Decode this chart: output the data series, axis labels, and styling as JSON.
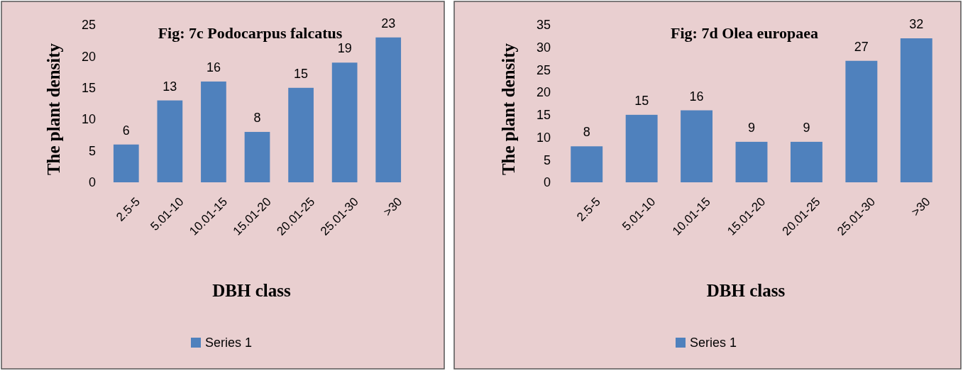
{
  "chart_data": [
    {
      "type": "bar",
      "title": "Fig: 7c Podocarpus falcatus",
      "xlabel": "DBH class",
      "ylabel": "The plant density",
      "categories": [
        "2.5-5",
        "5.01-10",
        "10.01-15",
        "15.01-20",
        "20.01-25",
        "25.01-30",
        ">30"
      ],
      "series": [
        {
          "name": "Series 1",
          "color": "#4f81bd",
          "values": [
            6,
            13,
            16,
            8,
            15,
            19,
            23
          ]
        }
      ],
      "ylim": [
        0,
        25
      ],
      "yticks": [
        0,
        5,
        10,
        15,
        20,
        25
      ],
      "data_labels": true,
      "legend": "bottom"
    },
    {
      "type": "bar",
      "title": "Fig: 7d Olea europaea",
      "xlabel": "DBH class",
      "ylabel": "The plant density",
      "categories": [
        "2.5-5",
        "5.01-10",
        "10.01-15",
        "15.01-20",
        "20.01-25",
        "25.01-30",
        ">30"
      ],
      "series": [
        {
          "name": "Series 1",
          "color": "#4f81bd",
          "values": [
            8,
            15,
            16,
            9,
            9,
            27,
            32
          ]
        }
      ],
      "ylim": [
        0,
        35
      ],
      "yticks": [
        0,
        5,
        10,
        15,
        20,
        25,
        30,
        35
      ],
      "data_labels": true,
      "legend": "bottom"
    }
  ]
}
